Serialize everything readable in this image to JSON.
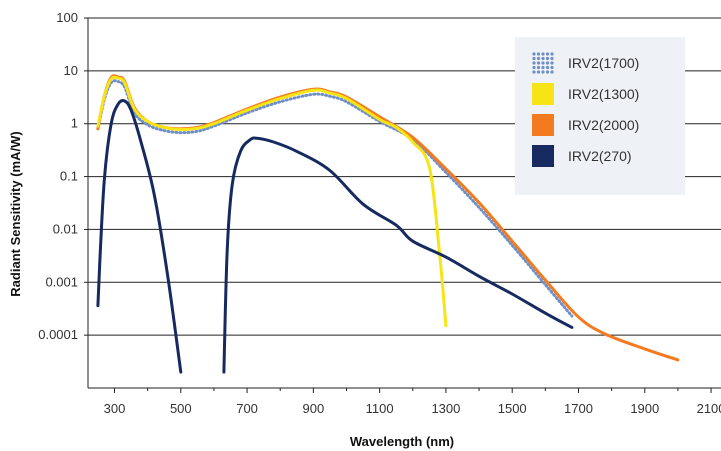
{
  "chart_data": {
    "type": "line",
    "xlabel": "Wavelength (nm)",
    "ylabel": "Radiant Sensitivity (mA/W)",
    "yscale": "log",
    "xlim": [
      220,
      2130
    ],
    "ylim": [
      1e-05,
      100
    ],
    "grid": "horizontal",
    "legend_position": "top-right",
    "x_ticks": [
      300,
      500,
      700,
      900,
      1100,
      1300,
      1500,
      1700,
      1900,
      2100
    ],
    "x_tick_labels": [
      "300",
      "500",
      "700",
      "900",
      "1100",
      "1300",
      "1500",
      "1700",
      "1900",
      "2100"
    ],
    "y_ticks": [
      100,
      10,
      1,
      0.1,
      0.01,
      0.001,
      0.0001
    ],
    "y_tick_labels": [
      "100",
      "10",
      "1",
      "0.1",
      "0.01",
      "0.001",
      "0.0001"
    ],
    "series": [
      {
        "name": "IRV2(1700)",
        "color": "#6f8fc6",
        "style": "dotted",
        "points": [
          [
            250,
            0.8
          ],
          [
            270,
            3.0
          ],
          [
            290,
            6.0
          ],
          [
            310,
            6.3
          ],
          [
            330,
            5.0
          ],
          [
            360,
            1.6
          ],
          [
            400,
            0.95
          ],
          [
            450,
            0.74
          ],
          [
            500,
            0.68
          ],
          [
            550,
            0.72
          ],
          [
            600,
            0.9
          ],
          [
            700,
            1.6
          ],
          [
            800,
            2.6
          ],
          [
            900,
            3.6
          ],
          [
            950,
            3.3
          ],
          [
            1000,
            2.6
          ],
          [
            1100,
            1.1
          ],
          [
            1200,
            0.5
          ],
          [
            1300,
            0.12
          ],
          [
            1400,
            0.026
          ],
          [
            1500,
            0.005
          ],
          [
            1600,
            0.0009
          ],
          [
            1680,
            0.00023
          ]
        ]
      },
      {
        "name": "IRV2(1300)",
        "color": "#f7e417",
        "style": "solid",
        "points": [
          [
            250,
            0.9
          ],
          [
            270,
            3.5
          ],
          [
            290,
            7.0
          ],
          [
            310,
            7.3
          ],
          [
            330,
            6.0
          ],
          [
            360,
            1.9
          ],
          [
            400,
            1.1
          ],
          [
            450,
            0.85
          ],
          [
            500,
            0.78
          ],
          [
            550,
            0.82
          ],
          [
            600,
            1.0
          ],
          [
            700,
            1.8
          ],
          [
            800,
            3.0
          ],
          [
            900,
            4.3
          ],
          [
            950,
            3.8
          ],
          [
            1000,
            3.0
          ],
          [
            1100,
            1.2
          ],
          [
            1150,
            0.85
          ],
          [
            1200,
            0.45
          ],
          [
            1250,
            0.15
          ],
          [
            1280,
            0.004
          ],
          [
            1300,
            0.00015
          ]
        ]
      },
      {
        "name": "IRV2(2000)",
        "color": "#f47a20",
        "style": "solid",
        "points": [
          [
            250,
            0.8
          ],
          [
            270,
            3.5
          ],
          [
            290,
            7.5
          ],
          [
            310,
            7.7
          ],
          [
            330,
            6.4
          ],
          [
            360,
            2.0
          ],
          [
            400,
            1.1
          ],
          [
            450,
            0.85
          ],
          [
            500,
            0.8
          ],
          [
            550,
            0.85
          ],
          [
            600,
            1.05
          ],
          [
            700,
            1.9
          ],
          [
            800,
            3.2
          ],
          [
            900,
            4.5
          ],
          [
            950,
            4.0
          ],
          [
            1000,
            3.2
          ],
          [
            1100,
            1.35
          ],
          [
            1200,
            0.55
          ],
          [
            1300,
            0.14
          ],
          [
            1400,
            0.032
          ],
          [
            1500,
            0.006
          ],
          [
            1600,
            0.0011
          ],
          [
            1700,
            0.00022
          ],
          [
            1780,
            0.000105
          ],
          [
            1900,
            5.5e-05
          ],
          [
            2000,
            3.4e-05
          ]
        ]
      },
      {
        "name": "IRV2(270)",
        "color": "#162a60",
        "style": "solid",
        "points": [
          [
            250,
            0.00036
          ],
          [
            258,
            0.005
          ],
          [
            270,
            0.1
          ],
          [
            290,
            1.0
          ],
          [
            310,
            2.3
          ],
          [
            330,
            2.7
          ],
          [
            350,
            1.8
          ],
          [
            380,
            0.45
          ],
          [
            420,
            0.045
          ],
          [
            460,
            0.0014
          ],
          [
            500,
            2e-05
          ]
        ],
        "segment2": [
          [
            630,
            2e-05
          ],
          [
            640,
            0.004
          ],
          [
            655,
            0.07
          ],
          [
            680,
            0.3
          ],
          [
            710,
            0.5
          ],
          [
            730,
            0.53
          ],
          [
            780,
            0.45
          ],
          [
            850,
            0.3
          ],
          [
            950,
            0.13
          ],
          [
            1050,
            0.03
          ],
          [
            1150,
            0.012
          ],
          [
            1200,
            0.006
          ],
          [
            1300,
            0.003
          ],
          [
            1400,
            0.0013
          ],
          [
            1500,
            0.0006
          ],
          [
            1600,
            0.00026
          ],
          [
            1680,
            0.00014
          ]
        ]
      }
    ]
  }
}
